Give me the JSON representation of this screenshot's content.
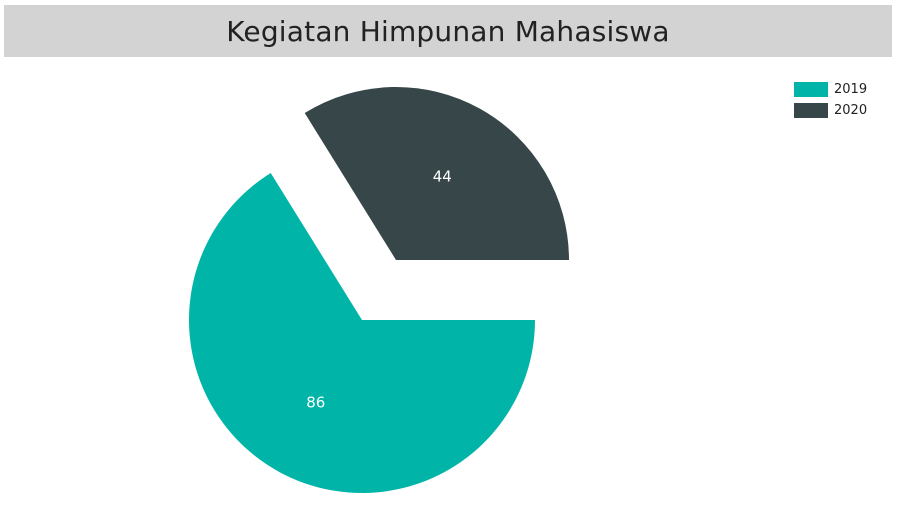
{
  "chart_data": {
    "type": "pie",
    "title": "Kegiatan Himpunan Mahasiswa",
    "categories": [
      "2019",
      "2020"
    ],
    "values": [
      86,
      44
    ],
    "colors": [
      "#00b5a8",
      "#374649"
    ],
    "data_labels": [
      "86",
      "44"
    ],
    "exploded": true,
    "legend_position": "top-right"
  }
}
